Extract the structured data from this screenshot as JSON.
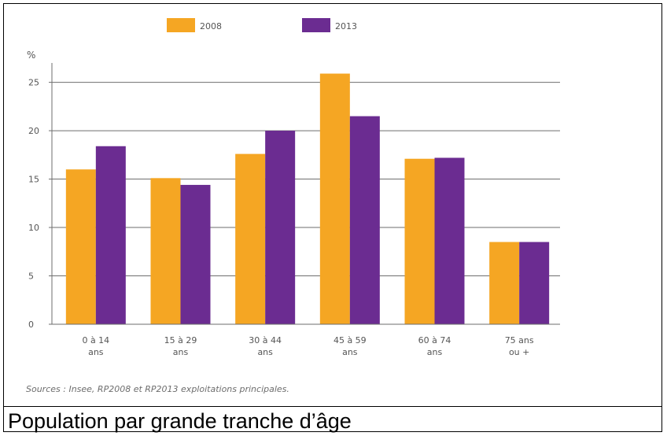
{
  "chart_data": {
    "type": "bar",
    "y_unit": "%",
    "categories": [
      [
        "0 à 14",
        "ans"
      ],
      [
        "15 à 29",
        "ans"
      ],
      [
        "30 à 44",
        "ans"
      ],
      [
        "45 à 59",
        "ans"
      ],
      [
        "60 à 74",
        "ans"
      ],
      [
        "75 ans",
        "ou +"
      ]
    ],
    "series": [
      {
        "name": "2008",
        "color": "#F5A623",
        "values": [
          16.0,
          15.1,
          17.6,
          25.9,
          17.1,
          8.5
        ]
      },
      {
        "name": "2013",
        "color": "#6B2C91",
        "values": [
          18.4,
          14.4,
          20.0,
          21.5,
          17.2,
          8.5
        ]
      }
    ],
    "ylim": [
      0,
      27
    ],
    "yticks": [
      0,
      5,
      10,
      15,
      20,
      25
    ],
    "grid": true,
    "legend_position": "top"
  },
  "source_text": "Sources : Insee, RP2008 et RP2013 exploitations principales.",
  "caption": "Population par grande tranche d’âge"
}
